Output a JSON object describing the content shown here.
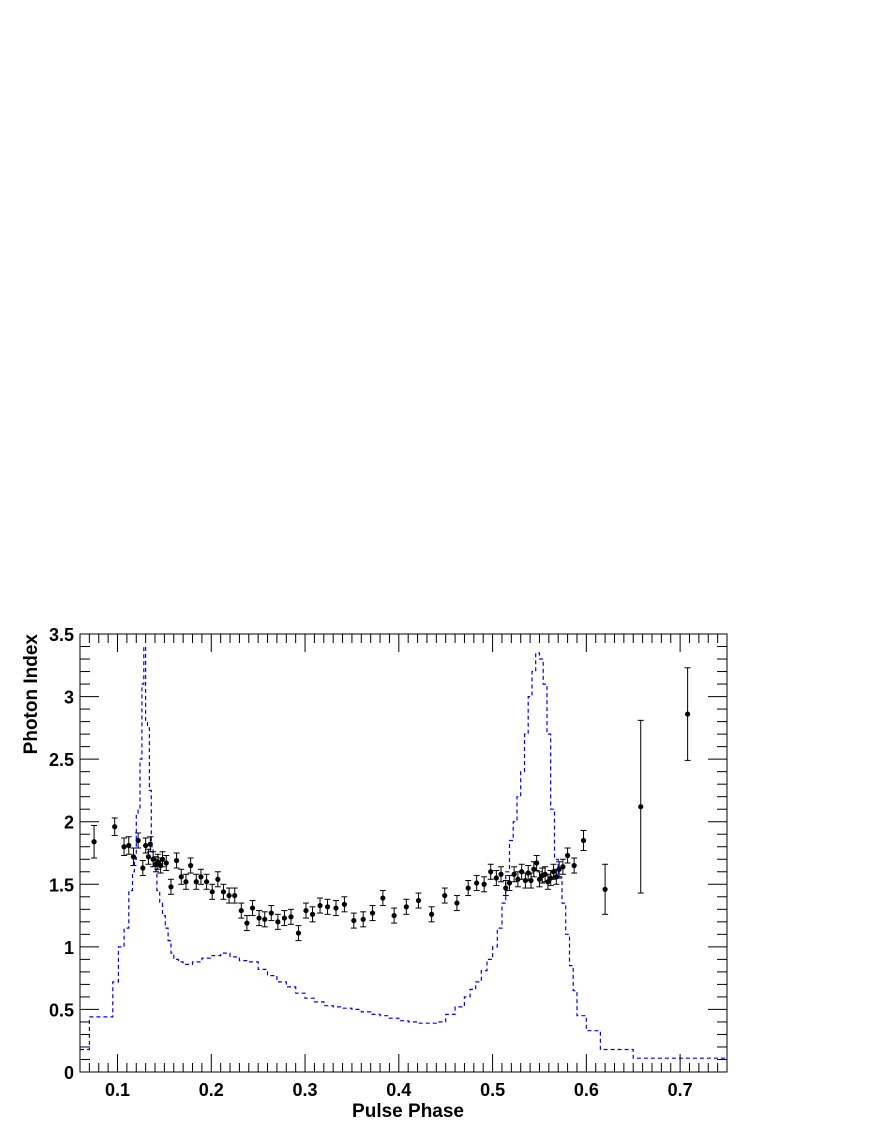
{
  "chart_data": {
    "type": "scatter",
    "title": "",
    "xlabel": "Pulse Phase",
    "ylabel": "Photon Index",
    "xlim": [
      0.06,
      0.75
    ],
    "ylim": [
      0,
      3.5
    ],
    "x_ticks": [
      "0.1",
      "0.2",
      "0.3",
      "0.4",
      "0.5",
      "0.6",
      "0.7"
    ],
    "y_ticks": [
      "0",
      "0.5",
      "1",
      "1.5",
      "2",
      "2.5",
      "3",
      "3.5"
    ],
    "grid": false,
    "legend": "none",
    "series": [
      {
        "kind": "points_with_errors",
        "color": "#000000",
        "points": [
          [
            0.075,
            1.84,
            0.13
          ],
          [
            0.097,
            1.96,
            0.07
          ],
          [
            0.107,
            1.8,
            0.07
          ],
          [
            0.112,
            1.81,
            0.07
          ],
          [
            0.117,
            1.72,
            0.07
          ],
          [
            0.122,
            1.85,
            0.06
          ],
          [
            0.127,
            1.63,
            0.06
          ],
          [
            0.13,
            1.81,
            0.06
          ],
          [
            0.133,
            1.72,
            0.06
          ],
          [
            0.135,
            1.82,
            0.06
          ],
          [
            0.138,
            1.7,
            0.06
          ],
          [
            0.141,
            1.66,
            0.06
          ],
          [
            0.143,
            1.68,
            0.06
          ],
          [
            0.146,
            1.65,
            0.06
          ],
          [
            0.148,
            1.7,
            0.06
          ],
          [
            0.152,
            1.67,
            0.06
          ],
          [
            0.157,
            1.48,
            0.06
          ],
          [
            0.163,
            1.69,
            0.06
          ],
          [
            0.168,
            1.56,
            0.06
          ],
          [
            0.173,
            1.52,
            0.06
          ],
          [
            0.178,
            1.65,
            0.06
          ],
          [
            0.184,
            1.52,
            0.06
          ],
          [
            0.189,
            1.56,
            0.06
          ],
          [
            0.195,
            1.52,
            0.06
          ],
          [
            0.201,
            1.44,
            0.06
          ],
          [
            0.207,
            1.54,
            0.06
          ],
          [
            0.213,
            1.44,
            0.06
          ],
          [
            0.219,
            1.41,
            0.06
          ],
          [
            0.225,
            1.41,
            0.06
          ],
          [
            0.232,
            1.29,
            0.06
          ],
          [
            0.238,
            1.19,
            0.06
          ],
          [
            0.244,
            1.31,
            0.06
          ],
          [
            0.251,
            1.23,
            0.06
          ],
          [
            0.257,
            1.22,
            0.06
          ],
          [
            0.264,
            1.27,
            0.06
          ],
          [
            0.271,
            1.2,
            0.06
          ],
          [
            0.278,
            1.23,
            0.06
          ],
          [
            0.285,
            1.24,
            0.06
          ],
          [
            0.293,
            1.11,
            0.06
          ],
          [
            0.301,
            1.29,
            0.06
          ],
          [
            0.308,
            1.26,
            0.06
          ],
          [
            0.316,
            1.33,
            0.06
          ],
          [
            0.324,
            1.32,
            0.06
          ],
          [
            0.333,
            1.31,
            0.06
          ],
          [
            0.342,
            1.34,
            0.06
          ],
          [
            0.352,
            1.21,
            0.06
          ],
          [
            0.362,
            1.22,
            0.06
          ],
          [
            0.372,
            1.27,
            0.06
          ],
          [
            0.383,
            1.39,
            0.06
          ],
          [
            0.395,
            1.25,
            0.06
          ],
          [
            0.408,
            1.32,
            0.06
          ],
          [
            0.421,
            1.37,
            0.06
          ],
          [
            0.435,
            1.26,
            0.06
          ],
          [
            0.449,
            1.41,
            0.06
          ],
          [
            0.462,
            1.35,
            0.06
          ],
          [
            0.474,
            1.47,
            0.06
          ],
          [
            0.483,
            1.51,
            0.06
          ],
          [
            0.491,
            1.5,
            0.06
          ],
          [
            0.498,
            1.6,
            0.06
          ],
          [
            0.504,
            1.55,
            0.06
          ],
          [
            0.509,
            1.58,
            0.06
          ],
          [
            0.514,
            1.47,
            0.06
          ],
          [
            0.518,
            1.51,
            0.06
          ],
          [
            0.523,
            1.58,
            0.06
          ],
          [
            0.527,
            1.54,
            0.06
          ],
          [
            0.531,
            1.6,
            0.06
          ],
          [
            0.535,
            1.53,
            0.06
          ],
          [
            0.538,
            1.59,
            0.06
          ],
          [
            0.541,
            1.53,
            0.06
          ],
          [
            0.544,
            1.62,
            0.06
          ],
          [
            0.547,
            1.67,
            0.06
          ],
          [
            0.55,
            1.54,
            0.06
          ],
          [
            0.553,
            1.57,
            0.06
          ],
          [
            0.556,
            1.58,
            0.06
          ],
          [
            0.559,
            1.52,
            0.06
          ],
          [
            0.562,
            1.55,
            0.06
          ],
          [
            0.565,
            1.6,
            0.06
          ],
          [
            0.568,
            1.56,
            0.06
          ],
          [
            0.571,
            1.62,
            0.06
          ],
          [
            0.575,
            1.64,
            0.06
          ],
          [
            0.58,
            1.73,
            0.06
          ],
          [
            0.587,
            1.65,
            0.06
          ],
          [
            0.597,
            1.85,
            0.08
          ],
          [
            0.62,
            1.46,
            0.2
          ],
          [
            0.658,
            2.12,
            0.69
          ],
          [
            0.708,
            2.86,
            0.37
          ]
        ]
      },
      {
        "kind": "step_histogram",
        "color": "#0000ff",
        "dashed": true,
        "edges": [
          0.06,
          0.07,
          0.09,
          0.095,
          0.101,
          0.107,
          0.112,
          0.116,
          0.118,
          0.12,
          0.122,
          0.124,
          0.126,
          0.128,
          0.13,
          0.132,
          0.134,
          0.136,
          0.138,
          0.14,
          0.142,
          0.145,
          0.148,
          0.151,
          0.154,
          0.157,
          0.16,
          0.165,
          0.17,
          0.18,
          0.19,
          0.2,
          0.21,
          0.22,
          0.23,
          0.24,
          0.25,
          0.26,
          0.27,
          0.28,
          0.29,
          0.3,
          0.31,
          0.32,
          0.33,
          0.34,
          0.35,
          0.36,
          0.37,
          0.38,
          0.39,
          0.4,
          0.41,
          0.42,
          0.43,
          0.44,
          0.45,
          0.46,
          0.47,
          0.476,
          0.482,
          0.488,
          0.494,
          0.5,
          0.505,
          0.51,
          0.514,
          0.518,
          0.522,
          0.526,
          0.53,
          0.534,
          0.538,
          0.542,
          0.546,
          0.55,
          0.554,
          0.558,
          0.562,
          0.566,
          0.57,
          0.574,
          0.578,
          0.582,
          0.586,
          0.59,
          0.6,
          0.615,
          0.625,
          0.65,
          0.7,
          0.75
        ],
        "values": [
          0.18,
          0.44,
          0.44,
          0.72,
          1.0,
          1.15,
          1.45,
          1.6,
          1.7,
          2.05,
          2.1,
          2.5,
          3.1,
          3.4,
          2.8,
          2.75,
          2.25,
          1.8,
          1.65,
          1.62,
          1.45,
          1.35,
          1.25,
          1.15,
          1.05,
          0.95,
          0.9,
          0.88,
          0.86,
          0.88,
          0.91,
          0.93,
          0.95,
          0.92,
          0.89,
          0.88,
          0.82,
          0.77,
          0.72,
          0.68,
          0.63,
          0.59,
          0.56,
          0.53,
          0.52,
          0.51,
          0.5,
          0.48,
          0.46,
          0.45,
          0.43,
          0.41,
          0.4,
          0.39,
          0.39,
          0.4,
          0.46,
          0.52,
          0.6,
          0.66,
          0.72,
          0.81,
          0.9,
          1.0,
          1.15,
          1.35,
          1.6,
          1.85,
          2.0,
          2.2,
          2.4,
          2.7,
          3.0,
          3.2,
          3.35,
          3.3,
          3.1,
          2.7,
          2.1,
          1.7,
          1.55,
          1.35,
          1.1,
          0.85,
          0.65,
          0.45,
          0.33,
          0.18,
          0.18,
          0.11,
          0.11
        ]
      }
    ]
  }
}
